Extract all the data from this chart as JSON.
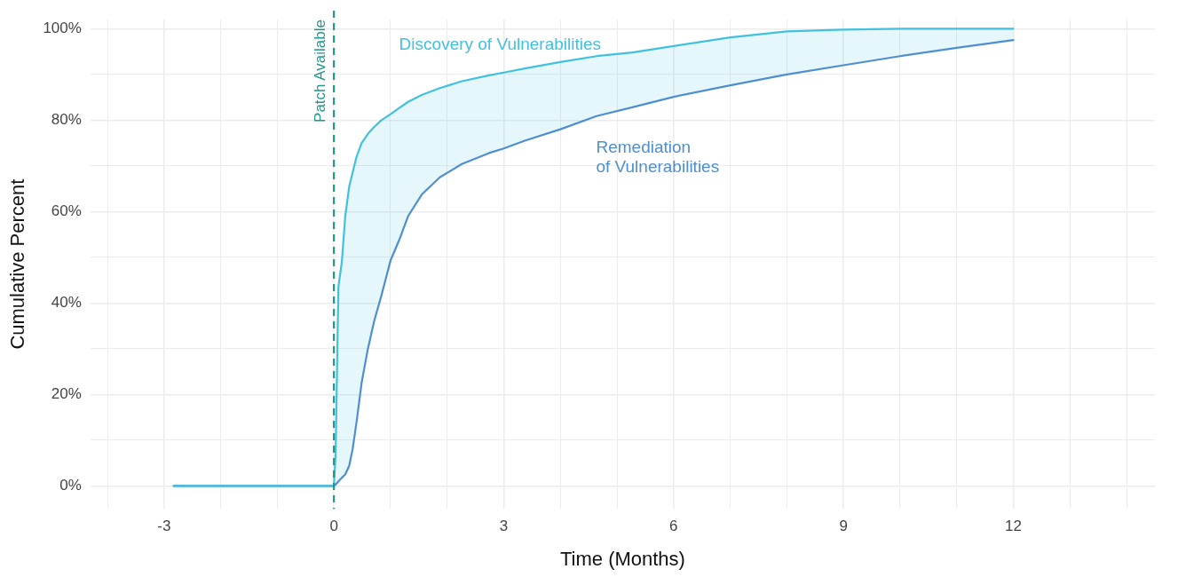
{
  "chart_data": {
    "type": "line",
    "xlabel": "Time (Months)",
    "ylabel": "Cumulative Percent",
    "x": [
      -2.83,
      0,
      0.03,
      0.08,
      0.14,
      0.2,
      0.27,
      0.33,
      0.4,
      0.49,
      0.6,
      0.71,
      0.84,
      1.0,
      1.16,
      1.31,
      1.55,
      1.87,
      2.26,
      2.74,
      3.0,
      3.37,
      4.0,
      4.64,
      5.27,
      6.0,
      7.0,
      8.0,
      9.0,
      10,
      11,
      12
    ],
    "series": [
      {
        "name": "Discovery of Vulnerabilities",
        "color": "#41c0e0",
        "values": [
          0,
          0,
          7,
          43.6,
          49,
          59,
          65.5,
          68.5,
          72,
          75,
          77,
          78.5,
          80,
          81.3,
          82.7,
          84,
          85.5,
          87,
          88.5,
          89.8,
          90.4,
          91.3,
          92.7,
          94,
          94.8,
          96.2,
          98.1,
          99.4,
          99.8,
          100,
          100,
          100
        ],
        "lower": [
          0,
          0,
          0.3,
          1,
          1.8,
          2.5,
          4.4,
          8,
          14,
          22.6,
          30,
          36,
          41.7,
          49.3,
          54,
          59,
          63.7,
          67.5,
          70.4,
          72.8,
          73.8,
          75.5,
          78,
          80.9,
          82.8,
          85.1,
          87.6,
          90,
          92,
          94,
          95.8,
          97.5
        ],
        "upper": [
          0,
          0,
          7,
          43.6,
          49,
          59,
          65.5,
          68.5,
          72,
          75,
          77,
          78.5,
          80,
          81.3,
          82.7,
          84,
          85.5,
          87,
          88.5,
          89.8,
          90.4,
          91.3,
          92.7,
          94,
          94.8,
          96.2,
          98.1,
          99.4,
          99.8,
          100,
          100,
          100
        ]
      },
      {
        "name": "Remediation\nof Vulnerabilities",
        "color": "#4f8fd0",
        "values": [
          0,
          0,
          0.3,
          1,
          1.8,
          2.5,
          4.4,
          8,
          14,
          22.6,
          30,
          36,
          41.7,
          49.3,
          54,
          59,
          63.7,
          67.5,
          70.4,
          72.8,
          73.8,
          75.5,
          78,
          80.9,
          82.8,
          85.1,
          87.6,
          90,
          92,
          94,
          95.8,
          97.5
        ]
      }
    ],
    "xlim": [
      -4.3,
      14.5
    ],
    "xticks": [
      {
        "value": -4,
        "label": null
      },
      {
        "value": -3,
        "label": "-3"
      },
      {
        "value": -2,
        "label": null
      },
      {
        "value": -1,
        "label": null
      },
      {
        "value": 0,
        "label": "0"
      },
      {
        "value": 1,
        "label": null
      },
      {
        "value": 2,
        "label": null
      },
      {
        "value": 3,
        "label": "3"
      },
      {
        "value": 4,
        "label": null
      },
      {
        "value": 5,
        "label": null
      },
      {
        "value": 6,
        "label": "6"
      },
      {
        "value": 7,
        "label": null
      },
      {
        "value": 8,
        "label": null
      },
      {
        "value": 9,
        "label": "9"
      },
      {
        "value": 10,
        "label": null
      },
      {
        "value": 11,
        "label": null
      },
      {
        "value": 12,
        "label": "12"
      },
      {
        "value": 13,
        "label": null
      },
      {
        "value": 14,
        "label": null
      }
    ],
    "ylim": [
      -5,
      102
    ],
    "yticks": [
      {
        "value": 0,
        "label": "0%"
      },
      {
        "value": 10,
        "label": null
      },
      {
        "value": 20,
        "label": "20%"
      },
      {
        "value": 30,
        "label": null
      },
      {
        "value": 40,
        "label": "40%"
      },
      {
        "value": 50,
        "label": null
      },
      {
        "value": 60,
        "label": "60%"
      },
      {
        "value": 70,
        "label": null
      },
      {
        "value": 80,
        "label": "80%"
      },
      {
        "value": 90,
        "label": null
      },
      {
        "value": 100,
        "label": "100%"
      }
    ],
    "ref_lines": [
      {
        "axis": "x",
        "value": 0,
        "label": "Patch Available",
        "color": "#21968c",
        "line_style": "dashed"
      }
    ],
    "grid": true,
    "legend": false,
    "marker": "none",
    "line_style": "solid"
  }
}
